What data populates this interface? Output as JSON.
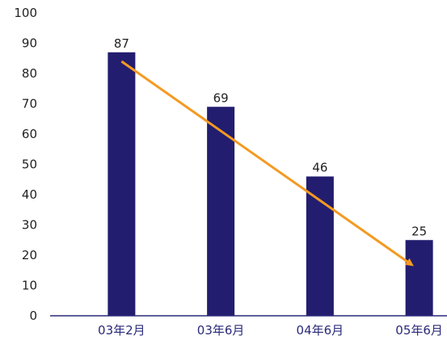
{
  "chart_data": {
    "type": "bar",
    "categories": [
      "03年2月",
      "03年6月",
      "04年6月",
      "05年6月"
    ],
    "values": [
      87,
      69,
      46,
      25
    ],
    "data_labels": [
      "87",
      "69",
      "46",
      "25"
    ],
    "yticks": [
      "0",
      "10",
      "20",
      "30",
      "40",
      "50",
      "60",
      "70",
      "80",
      "90",
      "100"
    ],
    "ylim": [
      0,
      100
    ],
    "title": "",
    "xlabel": "",
    "ylabel": "",
    "grid": false,
    "legend": "none",
    "annotations": [
      {
        "type": "trend-arrow",
        "from": 84,
        "to": 17
      }
    ],
    "colors": {
      "bar": "#231d6f",
      "arrow": "#f39a21",
      "axis": "#2a2a7a",
      "text": "#222222"
    }
  }
}
